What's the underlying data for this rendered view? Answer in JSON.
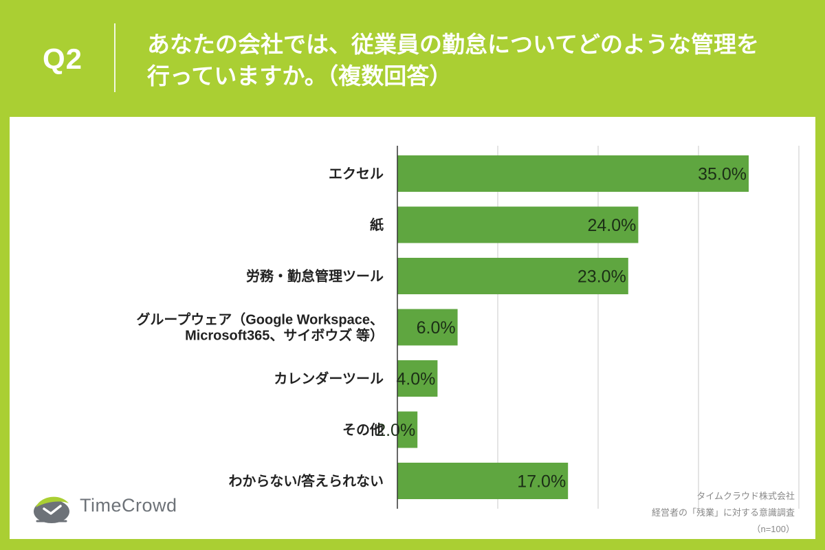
{
  "question": {
    "number": "Q2",
    "line1": "あなたの会社では、従業員の勤怠についてどのような管理を",
    "line2": "行っていますか。（複数回答）"
  },
  "chart_data": {
    "type": "bar",
    "orientation": "horizontal",
    "categories": [
      [
        "エクセル"
      ],
      [
        "紙"
      ],
      [
        "労務・勤怠管理ツール"
      ],
      [
        "グループウェア（Google Workspace、",
        "Microsoft365、サイボウズ 等）"
      ],
      [
        "カレンダーツール"
      ],
      [
        "その他"
      ],
      [
        "わからない/答えられない"
      ]
    ],
    "values": [
      35.0,
      24.0,
      23.0,
      6.0,
      4.0,
      2.0,
      17.0
    ],
    "value_labels": [
      "35.0%",
      "24.0%",
      "23.0%",
      "6.0%",
      "4.0%",
      "2.0%",
      "17.0%"
    ],
    "unit": "%",
    "xlim": [
      0,
      40
    ],
    "grid_step": 10,
    "grid": true,
    "title": "",
    "xlabel": "",
    "ylabel": ""
  },
  "colors": {
    "background": "#aacf33",
    "bar": "#5fa640",
    "bar_label": "#1b2e16",
    "gridline": "#c8c8c8",
    "axis": "#333333"
  },
  "logo": {
    "text": "TimeCrowd",
    "icon": "timecrowd-bird-icon"
  },
  "credit": {
    "company": "タイムクラウド株式会社",
    "survey": "経営者の「残業」に対する意識調査",
    "sample": "（n=100）"
  }
}
